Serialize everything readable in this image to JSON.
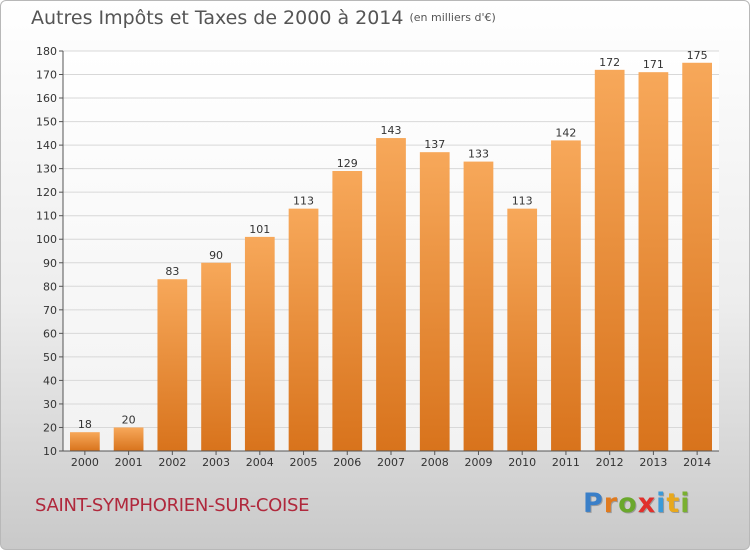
{
  "header": {
    "title": "Autres Impôts et Taxes de 2000 à 2014",
    "unit": "(en milliers d'€)"
  },
  "footer": {
    "city": "SAINT-SYMPHORIEN-SUR-COISE",
    "logo_letters": [
      "P",
      "r",
      "o",
      "x",
      "i",
      "t",
      "i"
    ],
    "logo_colors": [
      "#3a7fc8",
      "#e07a1e",
      "#6aa82c",
      "#e0302c",
      "#3a9ad8",
      "#e8a81c",
      "#7ab030"
    ]
  },
  "chart_data": {
    "type": "bar",
    "title": "Autres Impôts et Taxes de 2000 à 2014",
    "categories": [
      "2000",
      "2001",
      "2002",
      "2003",
      "2004",
      "2005",
      "2006",
      "2007",
      "2008",
      "2009",
      "2010",
      "2011",
      "2012",
      "2013",
      "2014"
    ],
    "values": [
      18,
      20,
      83,
      90,
      101,
      113,
      129,
      143,
      137,
      133,
      113,
      142,
      172,
      171,
      175
    ],
    "ylim": [
      10,
      180
    ],
    "yticks": [
      10,
      20,
      30,
      40,
      50,
      60,
      70,
      80,
      90,
      100,
      110,
      120,
      130,
      140,
      150,
      160,
      170,
      180
    ],
    "grid": true,
    "bar_color": "#f0923a"
  }
}
